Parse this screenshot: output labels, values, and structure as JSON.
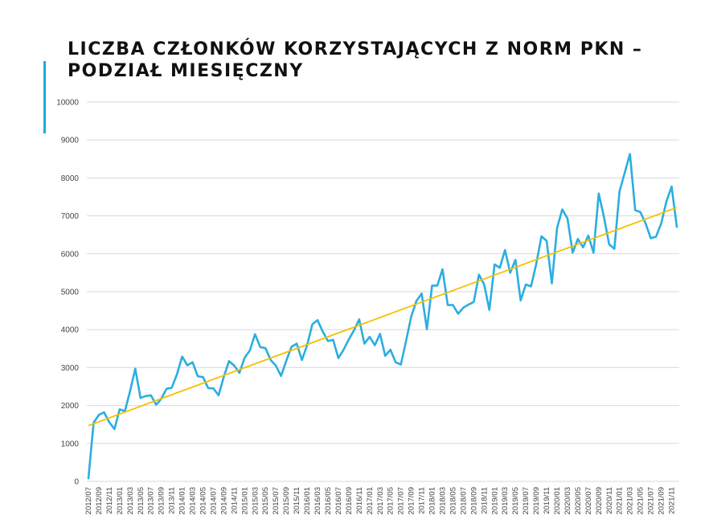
{
  "title_line1": "LICZBA CZŁONKÓW KORZYSTAJĄCYCH Z NORM PKN –",
  "title_line2": "PODZIAŁ MIESIĘCZNY",
  "colors": {
    "series": "#2aaee0",
    "trend": "#f5c000",
    "accent": "#1fa9dc",
    "grid": "#d9d9d9"
  },
  "chart_data": {
    "type": "line",
    "title": "LICZBA CZŁONKÓW KORZYSTAJĄCYCH Z NORM PKN – PODZIAŁ MIESIĘCZNY",
    "xlabel": "",
    "ylabel": "",
    "ylim": [
      0,
      10000
    ],
    "yticks": [
      0,
      1000,
      2000,
      3000,
      4000,
      5000,
      6000,
      7000,
      8000,
      9000,
      10000
    ],
    "grid": true,
    "x_start": "2012/07",
    "x_end": "2021/12",
    "x_tick_labels": [
      "2012/07",
      "2012/09",
      "2012/11",
      "2013/01",
      "2013/03",
      "2013/05",
      "2013/07",
      "2013/09",
      "2013/11",
      "2014/01",
      "2014/03",
      "2014/05",
      "2014/07",
      "2014/09",
      "2014/11",
      "2015/01",
      "2015/03",
      "2015/05",
      "2015/07",
      "2015/09",
      "2015/11",
      "2016/01",
      "2016/03",
      "2016/05",
      "2016/07",
      "2016/09",
      "2016/11",
      "2017/01",
      "2017/03",
      "2017/05",
      "2017/07",
      "2017/09",
      "2017/11",
      "2018/01",
      "2018/03",
      "2018/05",
      "2018/07",
      "2018/09",
      "2018/11",
      "2019/01",
      "2019/03",
      "2019/05",
      "2019/07",
      "2019/09",
      "2019/11",
      "2020/01",
      "2020/03",
      "2020/05",
      "2020/07",
      "2020/09",
      "2020/11",
      "2021/01",
      "2021/03",
      "2021/05",
      "2021/07",
      "2021/09",
      "2021/11"
    ],
    "series": [
      {
        "values": [
          80,
          1550,
          1750,
          1820,
          1560,
          1380,
          1900,
          1850,
          2380,
          2970,
          2200,
          2250,
          2270,
          2020,
          2180,
          2440,
          2470,
          2820,
          3290,
          3060,
          3140,
          2770,
          2750,
          2460,
          2450,
          2270,
          2760,
          3170,
          3050,
          2860,
          3260,
          3450,
          3880,
          3540,
          3510,
          3200,
          3050,
          2780,
          3180,
          3550,
          3630,
          3200,
          3590,
          4140,
          4250,
          3950,
          3700,
          3730,
          3250,
          3470,
          3740,
          3980,
          4270,
          3630,
          3810,
          3590,
          3890,
          3310,
          3470,
          3140,
          3080,
          3700,
          4350,
          4760,
          4950,
          4010,
          5160,
          5160,
          5590,
          4650,
          4650,
          4420,
          4580,
          4660,
          4730,
          5450,
          5190,
          4520,
          5720,
          5630,
          6100,
          5500,
          5840,
          4770,
          5190,
          5140,
          5730,
          6460,
          6340,
          5220,
          6680,
          7170,
          6930,
          6030,
          6390,
          6170,
          6480,
          6030,
          7590,
          6970,
          6250,
          6130,
          7650,
          8140,
          8630,
          7150,
          7100,
          6800,
          6410,
          6450,
          6800,
          7380,
          7770,
          6710
        ]
      },
      {
        "trend": true,
        "start": 1470,
        "end": 7220
      }
    ]
  }
}
